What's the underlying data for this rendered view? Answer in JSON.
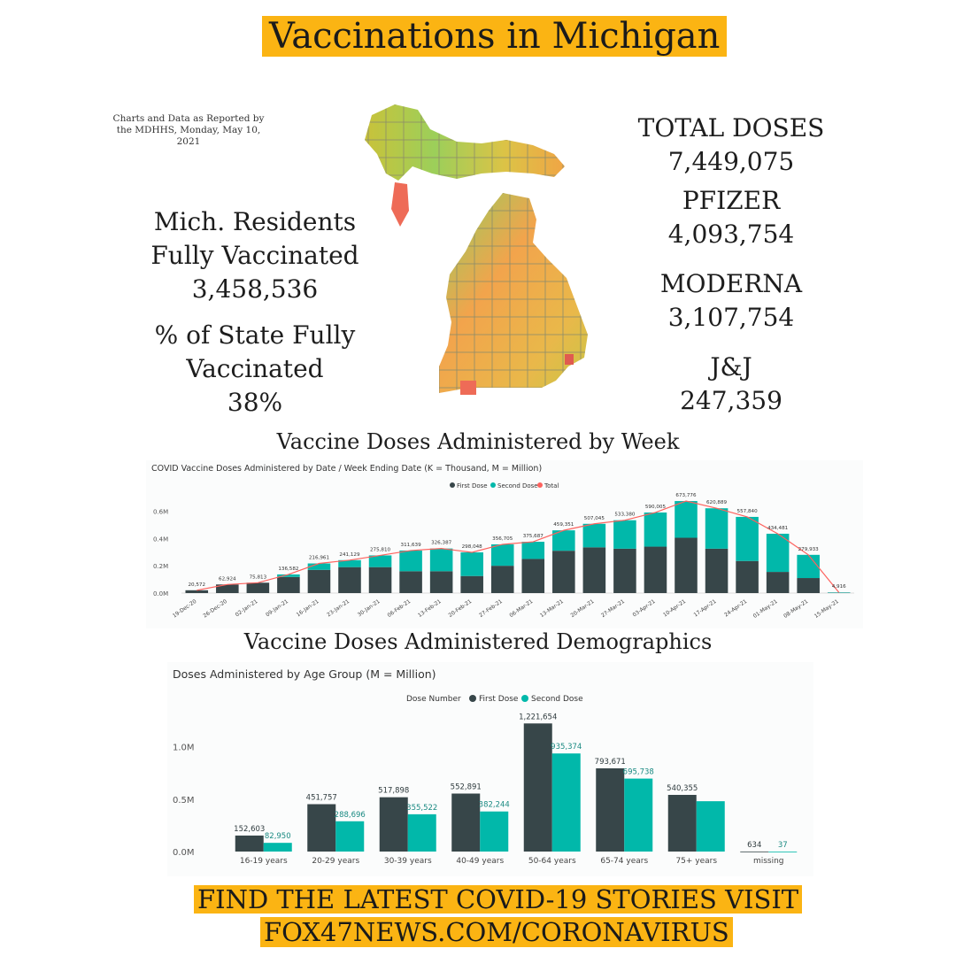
{
  "title": "Vaccinations in Michigan",
  "source_note": "Charts and Data as Reported by the MDHHS, Monday, May 10, 2021",
  "left_stats": {
    "residents_label_1": "Mich. Residents",
    "residents_label_2": "Fully Vaccinated",
    "residents_value": "3,458,536",
    "pct_label_1": "% of State Fully",
    "pct_label_2": "Vaccinated",
    "pct_value": "38%"
  },
  "right_stats": {
    "total_label": "TOTAL DOSES",
    "total_value": "7,449,075",
    "pfizer_label": "PFIZER",
    "pfizer_value": "4,093,754",
    "moderna_label": "MODERNA",
    "moderna_value": "3,107,754",
    "jj_label": "J&J",
    "jj_value": "247,359"
  },
  "colors": {
    "accent": "#fbb413",
    "first_dose": "#374649",
    "second_dose": "#01b8aa",
    "total": "#fd625e"
  },
  "weekly_section_title": "Vaccine Doses Administered by Week",
  "demo_section_title": "Vaccine Doses Administered Demographics",
  "footer": {
    "line1": "FIND THE LATEST COVID-19 STORIES VISIT",
    "line2": "FOX47NEWS.COM/CORONAVIRUS"
  },
  "chart_data": [
    {
      "type": "bar",
      "stacked": true,
      "title": "COVID Vaccine Doses Administered by Date / Week Ending Date (K = Thousand, M = Million)",
      "legend": [
        "First Dose",
        "Second Dose",
        "Total"
      ],
      "legend_position": "top-center",
      "categories": [
        "19-Dec-20",
        "26-Dec-20",
        "02-Jan-21",
        "09-Jan-21",
        "16-Jan-21",
        "23-Jan-21",
        "30-Jan-21",
        "06-Feb-21",
        "13-Feb-21",
        "20-Feb-21",
        "27-Feb-21",
        "06-Mar-21",
        "13-Mar-21",
        "20-Mar-21",
        "27-Mar-21",
        "03-Apr-21",
        "10-Apr-21",
        "17-Apr-21",
        "24-Apr-21",
        "01-May-21",
        "08-May-21",
        "15-May-21"
      ],
      "series": [
        {
          "name": "First Dose",
          "values": [
            20572,
            62924,
            75813,
            118000,
            170000,
            190000,
            190000,
            160000,
            160000,
            125000,
            200000,
            250000,
            310000,
            335000,
            325000,
            340000,
            405000,
            325000,
            235000,
            155000,
            110000,
            2000
          ]
        },
        {
          "name": "Second Dose",
          "values": [
            0,
            0,
            0,
            18582,
            46961,
            51129,
            85810,
            151639,
            166387,
            173048,
            156705,
            125687,
            149351,
            172045,
            208380,
            250005,
            268776,
            295889,
            322840,
            279481,
            169933,
            2916
          ]
        },
        {
          "name": "Total",
          "values": [
            20572,
            62924,
            75813,
            136582,
            216961,
            241129,
            275810,
            311639,
            326387,
            298048,
            356705,
            375687,
            459351,
            507045,
            533380,
            590005,
            673776,
            620889,
            557840,
            434481,
            279933,
            4916
          ]
        }
      ],
      "data_labels": [
        "20,572",
        "62,924",
        "75,813",
        "136,582",
        "216,961",
        "241,129",
        "275,810",
        "311,639",
        "326,387",
        "298,048",
        "356,705",
        "375,687",
        "459,351",
        "507,045",
        "533,380",
        "590,005",
        "673,776",
        "620,889",
        "557,840",
        "434,481",
        "279,933",
        "4,916"
      ],
      "y_ticks": [
        "0.0M",
        "0.2M",
        "0.4M",
        "0.6M"
      ],
      "ylim": [
        0,
        700000
      ],
      "grid": false
    },
    {
      "type": "bar",
      "title": "Doses Administered by Age Group (M = Million)",
      "legend_title": "Dose Number",
      "legend_position": "top-center",
      "categories": [
        "16-19 years",
        "20-29 years",
        "30-39 years",
        "40-49 years",
        "50-64 years",
        "65-74 years",
        "75+ years",
        "missing"
      ],
      "series": [
        {
          "name": "First Dose",
          "values": [
            152603,
            451757,
            517898,
            552891,
            1221654,
            793671,
            540355,
            634
          ],
          "labels": [
            "152,603",
            "451,757",
            "517,898",
            "552,891",
            "1,221,654",
            "793,671",
            "540,355",
            "634"
          ]
        },
        {
          "name": "Second Dose",
          "values": [
            82950,
            288696,
            355522,
            382244,
            935374,
            695738,
            480000,
            37
          ],
          "labels": [
            "82,950",
            "288,696",
            "355,522",
            "382,244",
            "935,374",
            "695,738",
            "",
            "37"
          ]
        }
      ],
      "y_ticks": [
        "0.0M",
        "0.5M",
        "1.0M"
      ],
      "ylim": [
        0,
        1300000
      ],
      "grid": false
    }
  ]
}
